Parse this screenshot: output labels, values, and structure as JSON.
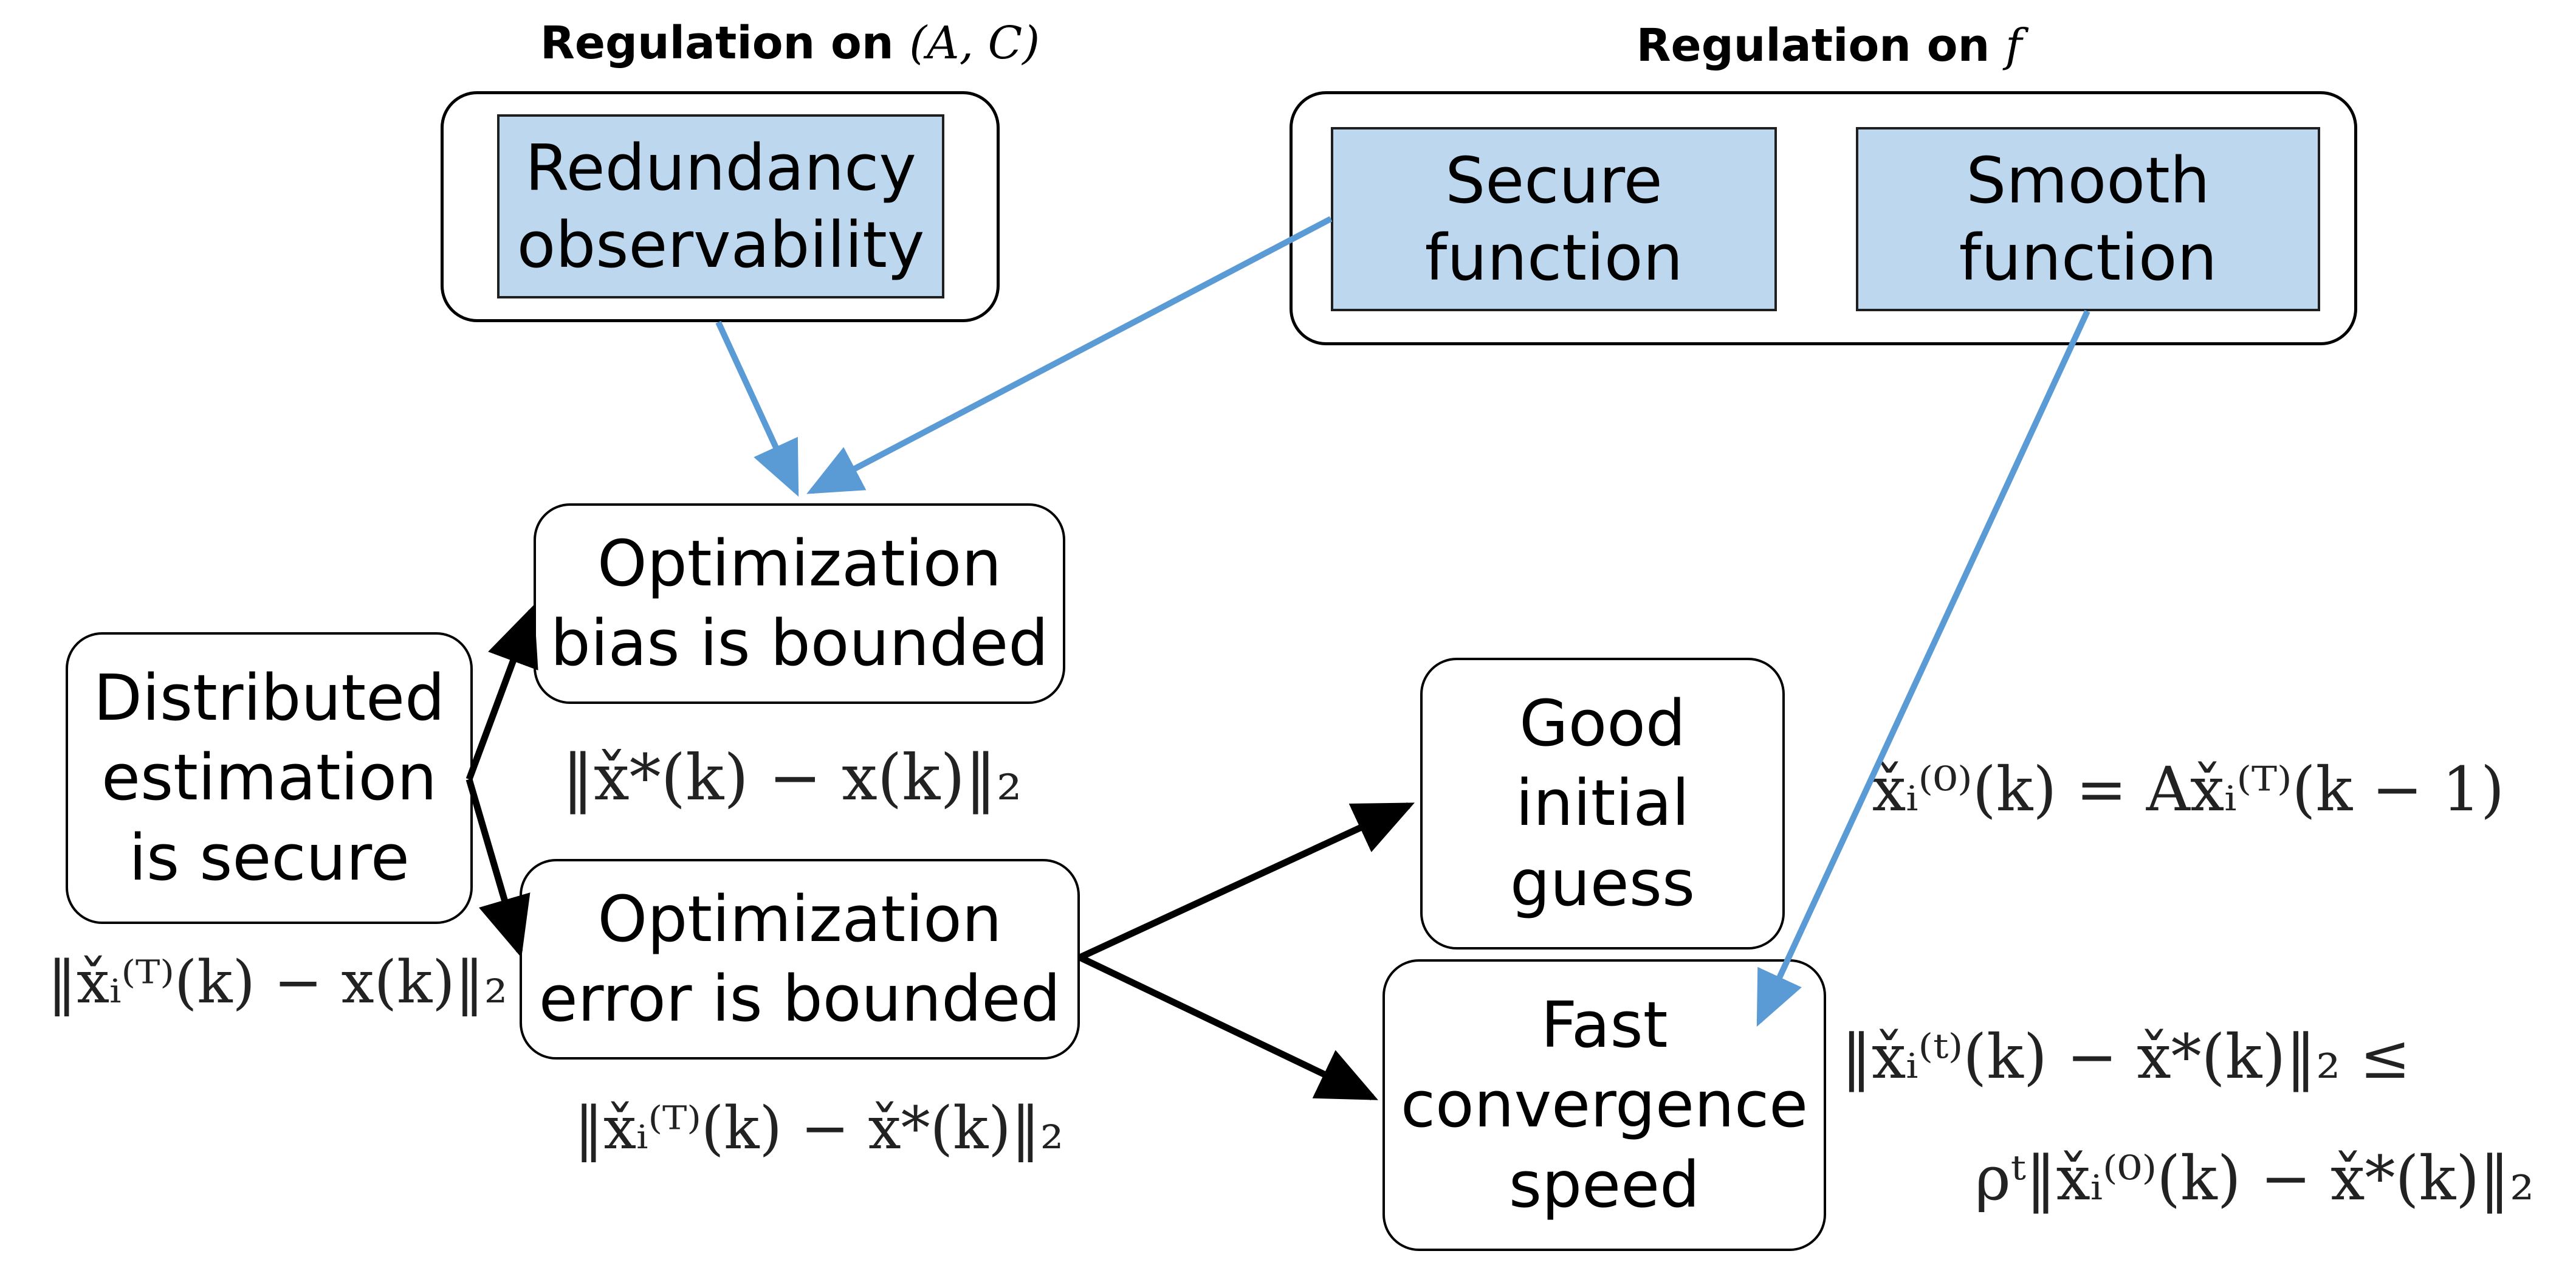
{
  "groups": {
    "ac": {
      "title_prefix": "Regulation on ",
      "title_math": "(A, C)"
    },
    "f": {
      "title_prefix": "Regulation on ",
      "title_math": "f"
    }
  },
  "boxes": {
    "redundancy": [
      "Redundancy",
      "observability"
    ],
    "secure": [
      "Secure",
      "function"
    ],
    "smooth": [
      "Smooth",
      "function"
    ]
  },
  "nodes": {
    "distributed": [
      "Distributed",
      "estimation",
      "is secure"
    ],
    "bias": [
      "Optimization",
      "bias is bounded"
    ],
    "error": [
      "Optimization",
      "error is bounded"
    ],
    "initial": [
      "Good",
      "initial",
      "guess"
    ],
    "fast": [
      "Fast",
      "convergence",
      "speed"
    ]
  },
  "formulas": {
    "distributed": "‖x̌ᵢ⁽ᵀ⁾(k) − x(k)‖₂",
    "bias": "‖x̌*(k) − x(k)‖₂",
    "error": "‖x̌ᵢ⁽ᵀ⁾(k) − x̌*(k)‖₂",
    "initial": "x̌ᵢ⁽⁰⁾(k) = Ax̌ᵢ⁽ᵀ⁾(k − 1)",
    "fast_line1": "‖x̌ᵢ⁽ᵗ⁾(k) − x̌*(k)‖₂ ≤",
    "fast_line2": "ρᵗ‖x̌ᵢ⁽⁰⁾(k) − x̌*(k)‖₂"
  },
  "colors": {
    "box_fill": "#bdd7ee",
    "blue_arrow": "#5b9bd5",
    "black_arrow": "#000000"
  }
}
